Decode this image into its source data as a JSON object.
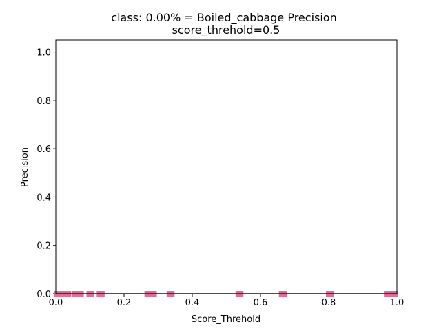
{
  "chart_data": {
    "type": "line",
    "title_line1": "class: 0.00% = Boiled_cabbage Precision",
    "title_line2": "score_threhold=0.5",
    "xlabel": "Score_Threhold",
    "ylabel": "Precision",
    "xlim": [
      0.0,
      1.0
    ],
    "ylim": [
      0.0,
      1.05
    ],
    "xticks": [
      0.0,
      0.2,
      0.4,
      0.6,
      0.8,
      1.0
    ],
    "xtick_labels": [
      "0.0",
      "0.2",
      "0.4",
      "0.6",
      "0.8",
      "1.0"
    ],
    "yticks": [
      0.0,
      0.2,
      0.4,
      0.6,
      0.8,
      1.0
    ],
    "ytick_labels": [
      "0.0",
      "0.2",
      "0.4",
      "0.6",
      "0.8",
      "1.0"
    ],
    "grid": false,
    "series": [
      {
        "line_color": "#8b1a3a",
        "marker_color": "#db7093",
        "x": [
          0.002,
          0.006,
          0.01,
          0.014,
          0.018,
          0.022,
          0.026,
          0.03,
          0.034,
          0.037,
          0.055,
          0.06,
          0.065,
          0.07,
          0.074,
          0.098,
          0.105,
          0.128,
          0.135,
          0.268,
          0.275,
          0.282,
          0.288,
          0.333,
          0.34,
          0.535,
          0.542,
          0.662,
          0.669,
          0.8,
          0.807,
          0.972,
          0.978,
          0.984,
          0.99,
          0.996
        ],
        "y": [
          0,
          0,
          0,
          0,
          0,
          0,
          0,
          0,
          0,
          0,
          0,
          0,
          0,
          0,
          0,
          0,
          0,
          0,
          0,
          0,
          0,
          0,
          0,
          0,
          0,
          0,
          0,
          0,
          0,
          0,
          0,
          0,
          0,
          0,
          0,
          0
        ]
      }
    ]
  }
}
